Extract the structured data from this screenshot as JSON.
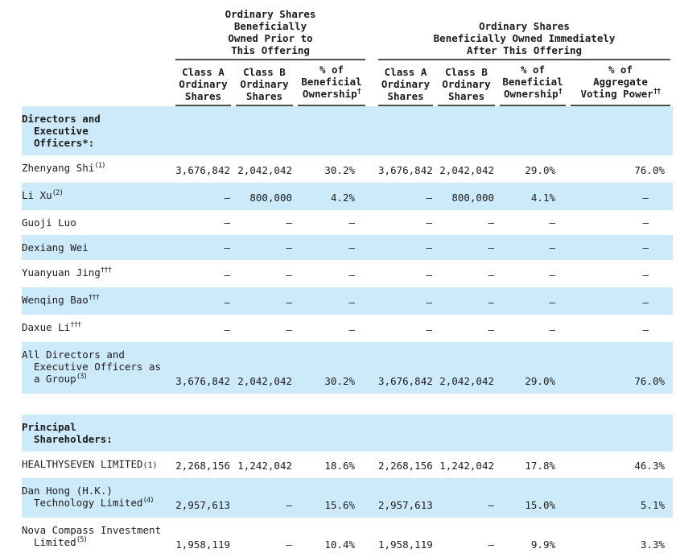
{
  "colors": {
    "shaded_row": "#cdeafa",
    "rule": "#4d4d4d",
    "text": "#1c1c1c"
  },
  "table": {
    "group_headers": [
      {
        "name": "prior-offering",
        "lines": [
          "Ordinary Shares",
          "Beneficially",
          "Owned Prior to",
          "This Offering"
        ]
      },
      {
        "name": "after-offering",
        "lines": [
          "Ordinary Shares",
          "Beneficially Owned Immediately",
          "After This Offering"
        ]
      }
    ],
    "columns": [
      {
        "lines": [
          "Class A",
          "Ordinary",
          "Shares"
        ],
        "sup": ""
      },
      {
        "lines": [
          "Class B",
          "Ordinary",
          "Shares"
        ],
        "sup": ""
      },
      {
        "lines": [
          "% of",
          "Beneficial",
          "Ownership"
        ],
        "sup": "†"
      },
      {
        "lines": [
          "Class A",
          "Ordinary",
          "Shares"
        ],
        "sup": ""
      },
      {
        "lines": [
          "Class B",
          "Ordinary",
          "Shares"
        ],
        "sup": ""
      },
      {
        "lines": [
          "% of",
          "Beneficial",
          "Ownership"
        ],
        "sup": "†"
      },
      {
        "lines": [
          "% of",
          "Aggregate",
          "Voting Power"
        ],
        "sup": "††"
      }
    ],
    "rows": [
      {
        "type": "section",
        "label_lines": [
          "Directors and",
          "Executive",
          "Officers*:"
        ],
        "sup": "",
        "shaded": true
      },
      {
        "type": "data",
        "label_lines": [
          "Zhenyang Shi"
        ],
        "sup": "(1)",
        "sup_style": "raised",
        "shaded": false,
        "values": [
          "3,676,842",
          "2,042,042",
          "30.2%",
          "3,676,842",
          "2,042,042",
          "29.0%",
          "76.0%"
        ]
      },
      {
        "type": "data",
        "label_lines": [
          "Li Xu"
        ],
        "sup": "(2)",
        "sup_style": "raised",
        "shaded": true,
        "values": [
          "—",
          "800,000",
          "4.2%",
          "—",
          "800,000",
          "4.1%",
          "—"
        ]
      },
      {
        "type": "data",
        "label_lines": [
          "Guoji Luo"
        ],
        "sup": "",
        "sup_style": "raised",
        "shaded": false,
        "values": [
          "—",
          "—",
          "—",
          "—",
          "—",
          "—",
          "—"
        ]
      },
      {
        "type": "data",
        "label_lines": [
          "Dexiang Wei"
        ],
        "sup": "",
        "sup_style": "raised",
        "shaded": true,
        "values": [
          "—",
          "—",
          "—",
          "—",
          "—",
          "—",
          "—"
        ]
      },
      {
        "type": "data",
        "label_lines": [
          "Yuanyuan Jing"
        ],
        "sup": "†††",
        "sup_style": "raised",
        "shaded": false,
        "values": [
          "—",
          "—",
          "—",
          "—",
          "—",
          "—",
          "—"
        ]
      },
      {
        "type": "data",
        "label_lines": [
          "Wenqing Bao"
        ],
        "sup": "†††",
        "sup_style": "raised",
        "shaded": true,
        "values": [
          "—",
          "—",
          "—",
          "—",
          "—",
          "—",
          "—"
        ]
      },
      {
        "type": "data",
        "label_lines": [
          "Daxue Li"
        ],
        "sup": "†††",
        "sup_style": "raised",
        "shaded": false,
        "values": [
          "—",
          "—",
          "—",
          "—",
          "—",
          "—",
          "—"
        ]
      },
      {
        "type": "data",
        "label_lines": [
          "All Directors and",
          "Executive Officers as",
          "a Group"
        ],
        "sup": "(3)",
        "sup_style": "raised",
        "shaded": true,
        "values": [
          "3,676,842",
          "2,042,042",
          "30.2%",
          "3,676,842",
          "2,042,042",
          "29.0%",
          "76.0%"
        ]
      },
      {
        "type": "spacer",
        "shaded": false
      },
      {
        "type": "section",
        "label_lines": [
          "Principal",
          "Shareholders:"
        ],
        "sup": "",
        "shaded": true
      },
      {
        "type": "data",
        "label_lines": [
          "HEALTHYSEVEN LIMITED"
        ],
        "sup": "(1)",
        "sup_style": "inline",
        "shaded": false,
        "values": [
          "2,268,156",
          "1,242,042",
          "18.6%",
          "2,268,156",
          "1,242,042",
          "17.8%",
          "46.3%"
        ]
      },
      {
        "type": "data",
        "label_lines": [
          "Dan Hong (H.K.)",
          "Technology Limited"
        ],
        "sup": "(4)",
        "sup_style": "raised",
        "shaded": true,
        "values": [
          "2,957,613",
          "—",
          "15.6%",
          "2,957,613",
          "—",
          "15.0%",
          "5.1%"
        ]
      },
      {
        "type": "data",
        "label_lines": [
          "Nova Compass Investment",
          "Limited"
        ],
        "sup": "(5)",
        "sup_style": "raised",
        "shaded": false,
        "values": [
          "1,958,119",
          "—",
          "10.4%",
          "1,958,119",
          "—",
          "9.9%",
          "3.3%"
        ]
      }
    ]
  }
}
